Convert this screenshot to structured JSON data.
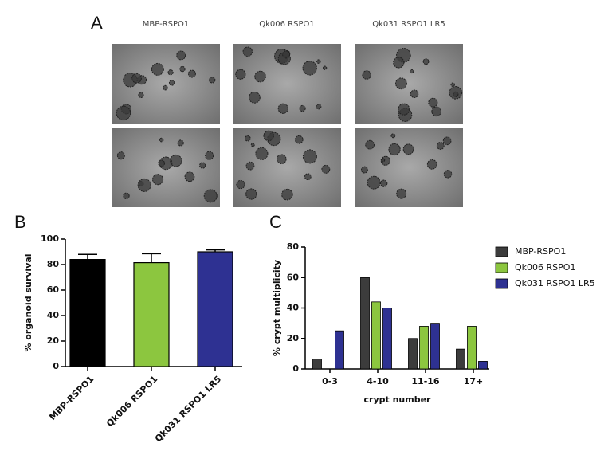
{
  "figure": {
    "panel_labels": [
      "A",
      "B",
      "C"
    ],
    "image_columns": [
      "MBP-RSPO1",
      "Qk006 RSPO1",
      "Qk031 RSPO1 LR5"
    ]
  },
  "chart_data": [
    {
      "type": "bar",
      "ylabel": "% organoid survival",
      "categories": [
        "MBP-RSPO1",
        "Qk006 RSPO1",
        "Qk031 RSPO1 LR5"
      ],
      "values": [
        84,
        81.5,
        90
      ],
      "errors": [
        4,
        7,
        1.5
      ],
      "colors": [
        "#000000",
        "#8cc63f",
        "#2e3192"
      ],
      "ylim": [
        0,
        100
      ],
      "yticks": [
        0,
        20,
        40,
        60,
        80,
        100
      ]
    },
    {
      "type": "grouped_bar",
      "xlabel": "crypt number",
      "ylabel": "% crypt multiplicity",
      "categories": [
        "0-3",
        "4-10",
        "11-16",
        "17+"
      ],
      "series": [
        {
          "name": "MBP-RSPO1",
          "color": "#3c3c3c",
          "values": [
            6.5,
            60,
            20,
            13
          ]
        },
        {
          "name": "Qk006 RSPO1",
          "color": "#8cc63f",
          "values": [
            0,
            44,
            28,
            28
          ]
        },
        {
          "name": "Qk031 RSPO1 LR5",
          "color": "#2e3192",
          "values": [
            25,
            40,
            30,
            5
          ]
        }
      ],
      "ylim": [
        0,
        80
      ],
      "yticks": [
        0,
        20,
        40,
        60,
        80
      ],
      "legend": "right"
    }
  ]
}
